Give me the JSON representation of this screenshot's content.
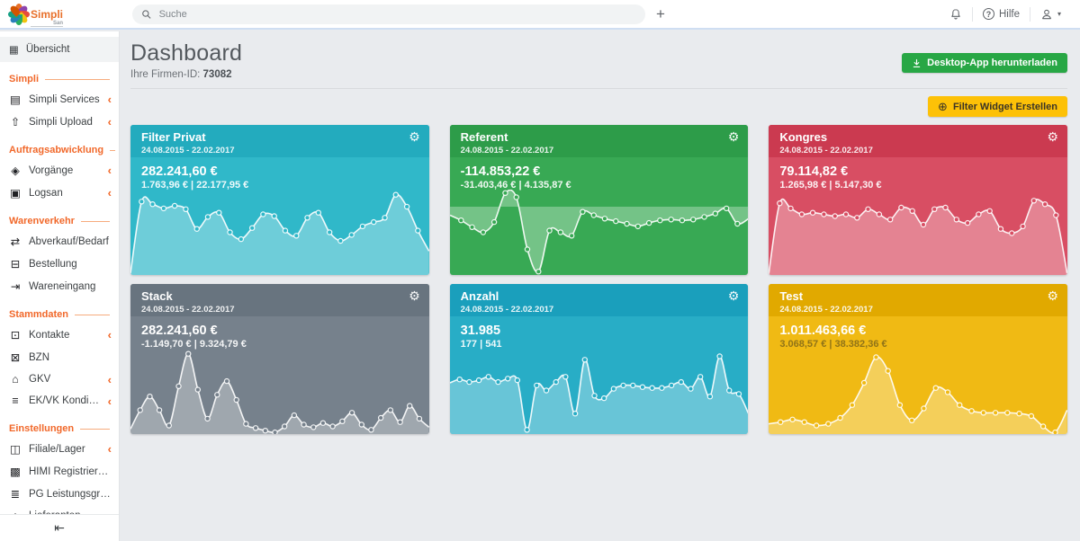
{
  "logo": {
    "name": "Simpli",
    "sub": "San",
    "petal_colors": [
      "#e8702a",
      "#8e44ad",
      "#e74c3c",
      "#f1c40f",
      "#27ae60",
      "#2980b9",
      "#16a085",
      "#d35400"
    ]
  },
  "topbar": {
    "search_placeholder": "Suche",
    "add_tab_icon": "+",
    "help_label": "Hilfe",
    "icons": {
      "search": "search-icon",
      "bell": "bell-icon",
      "help": "help-icon",
      "user": "user-icon"
    },
    "user_caret": "▾"
  },
  "sidebar": {
    "overview": {
      "label": "Übersicht",
      "icon": "▦",
      "icon_name": "grid-icon"
    },
    "sections": [
      {
        "title": "Simpli",
        "items": [
          {
            "label": "Simpli Services",
            "icon": "▤",
            "icon_name": "services-icon",
            "chevron": true
          },
          {
            "label": "Simpli Upload",
            "icon": "⇧",
            "icon_name": "upload-cloud-icon",
            "chevron": true
          }
        ]
      },
      {
        "title": "Auftragsabwicklung",
        "items": [
          {
            "label": "Vorgänge",
            "icon": "◈",
            "icon_name": "layers-icon",
            "chevron": true
          },
          {
            "label": "Logsan",
            "icon": "▣",
            "icon_name": "safe-icon",
            "chevron": true
          }
        ]
      },
      {
        "title": "Warenverkehr",
        "items": [
          {
            "label": "Abverkauf/Bedarf",
            "icon": "⇄",
            "icon_name": "sales-demand-icon",
            "chevron": false
          },
          {
            "label": "Bestellung",
            "icon": "⊟",
            "icon_name": "cart-icon",
            "chevron": false
          },
          {
            "label": "Wareneingang",
            "icon": "⇥",
            "icon_name": "goods-in-icon",
            "chevron": false
          }
        ]
      },
      {
        "title": "Stammdaten",
        "items": [
          {
            "label": "Kontakte",
            "icon": "⊡",
            "icon_name": "contacts-icon",
            "chevron": true
          },
          {
            "label": "BZN",
            "icon": "⊠",
            "icon_name": "barcode-icon",
            "chevron": false
          },
          {
            "label": "GKV",
            "icon": "⌂",
            "icon_name": "building-icon",
            "chevron": true
          },
          {
            "label": "EK/VK Konditionen",
            "icon": "≡",
            "icon_name": "database-icon",
            "chevron": true
          }
        ]
      },
      {
        "title": "Einstellungen",
        "items": [
          {
            "label": "Filiale/Lager",
            "icon": "◫",
            "icon_name": "store-icon",
            "chevron": true
          },
          {
            "label": "HIMI Registrierungs...",
            "icon": "▩",
            "icon_name": "registry-grid-icon",
            "chevron": false
          },
          {
            "label": "PG Leistungsgruppen",
            "icon": "≣",
            "icon_name": "list-icon",
            "chevron": false
          },
          {
            "label": "Lieferanten",
            "icon": "⌂",
            "icon_name": "shop-icon",
            "chevron": false
          }
        ]
      }
    ],
    "chevron_char": "‹",
    "collapse_icon": "⇤"
  },
  "header": {
    "title": "Dashboard",
    "company_id_label": "Ihre Firmen-ID:",
    "company_id": "73082",
    "download_button": "Desktop-App herunterladen",
    "filter_button": "Filter Widget Erstellen",
    "filter_button_icon": "⊕",
    "download_button_color": "#28a745",
    "filter_button_color": "#fdc107"
  },
  "icons": {
    "gear": "⚙"
  },
  "cards": [
    {
      "title": "Filter Privat",
      "date_range": "24.08.2015 - 22.02.2017",
      "value": "282.241,60 €",
      "sub_value": "1.763,96 € | 22.177,95 €",
      "header_color": "#23abbe",
      "body_color": "#30b8c9",
      "spark": {
        "type": "area",
        "baseline": 0,
        "values": [
          2,
          86,
          83,
          78,
          81,
          77,
          54,
          68,
          73,
          50,
          42,
          55,
          71,
          69,
          52,
          46,
          67,
          73,
          50,
          40,
          47,
          57,
          62,
          67,
          94,
          80,
          52,
          28
        ]
      }
    },
    {
      "title": "Referent",
      "date_range": "24.08.2015 - 22.02.2017",
      "value": "-114.853,22 €",
      "sub_value": "-31.403,46 € | 4.135,87 €",
      "header_color": "#2d9c49",
      "body_color": "#38a954",
      "spark": {
        "type": "area",
        "baseline": 80,
        "values": [
          70,
          64,
          56,
          50,
          62,
          96,
          91,
          30,
          4,
          52,
          50,
          46,
          74,
          70,
          66,
          63,
          60,
          57,
          61,
          64,
          65,
          64,
          65,
          68,
          72,
          78,
          60,
          66
        ]
      }
    },
    {
      "title": "Kongres",
      "date_range": "24.08.2015 - 22.02.2017",
      "value": "79.114,82 €",
      "sub_value": "1.265,98 € | 5.147,30 €",
      "header_color": "#cb3a50",
      "body_color": "#d84e63",
      "spark": {
        "type": "area",
        "baseline": 0,
        "values": [
          0,
          84,
          78,
          71,
          73,
          71,
          69,
          71,
          67,
          77,
          71,
          65,
          79,
          75,
          59,
          77,
          79,
          65,
          61,
          71,
          75,
          54,
          49,
          57,
          87,
          83,
          70,
          2
        ]
      }
    },
    {
      "title": "Stack",
      "date_range": "24.08.2015 - 22.02.2017",
      "value": "282.241,60 €",
      "sub_value": "-1.149,70 € | 9.324,79 €",
      "header_color": "#68747f",
      "body_color": "#76818c",
      "spark": {
        "type": "area",
        "baseline": 0,
        "values": [
          6,
          28,
          44,
          28,
          10,
          56,
          94,
          52,
          18,
          46,
          62,
          40,
          12,
          7,
          4,
          2,
          9,
          22,
          11,
          8,
          13,
          9,
          15,
          25,
          11,
          5,
          19,
          28,
          14,
          33,
          18,
          8
        ]
      }
    },
    {
      "title": "Anzahl",
      "date_range": "24.08.2015 - 22.02.2017",
      "value": "31.985",
      "sub_value": "177 | 541",
      "header_color": "#1a9fbc",
      "body_color": "#28adc6",
      "spark": {
        "type": "area",
        "baseline": 0,
        "values": [
          60,
          64,
          61,
          63,
          67,
          61,
          65,
          63,
          5,
          57,
          51,
          61,
          67,
          24,
          87,
          45,
          42,
          53,
          57,
          57,
          55,
          54,
          54,
          57,
          61,
          53,
          67,
          44,
          91,
          51,
          47,
          24
        ]
      }
    },
    {
      "title": "Test",
      "date_range": "24.08.2015 - 22.02.2017",
      "value": "1.011.463,66 €",
      "sub_value": "3.068,57 € | 38.382,36 €",
      "sub_color": "rgba(64,57,28,0.55)",
      "header_color": "#e1a900",
      "body_color": "#f0ba14",
      "spark": {
        "type": "area",
        "baseline": 0,
        "values": [
          12,
          14,
          17,
          14,
          10,
          12,
          19,
          34,
          60,
          90,
          74,
          34,
          16,
          30,
          54,
          49,
          34,
          27,
          25,
          25,
          25,
          24,
          21,
          9,
          2,
          28
        ]
      }
    }
  ]
}
